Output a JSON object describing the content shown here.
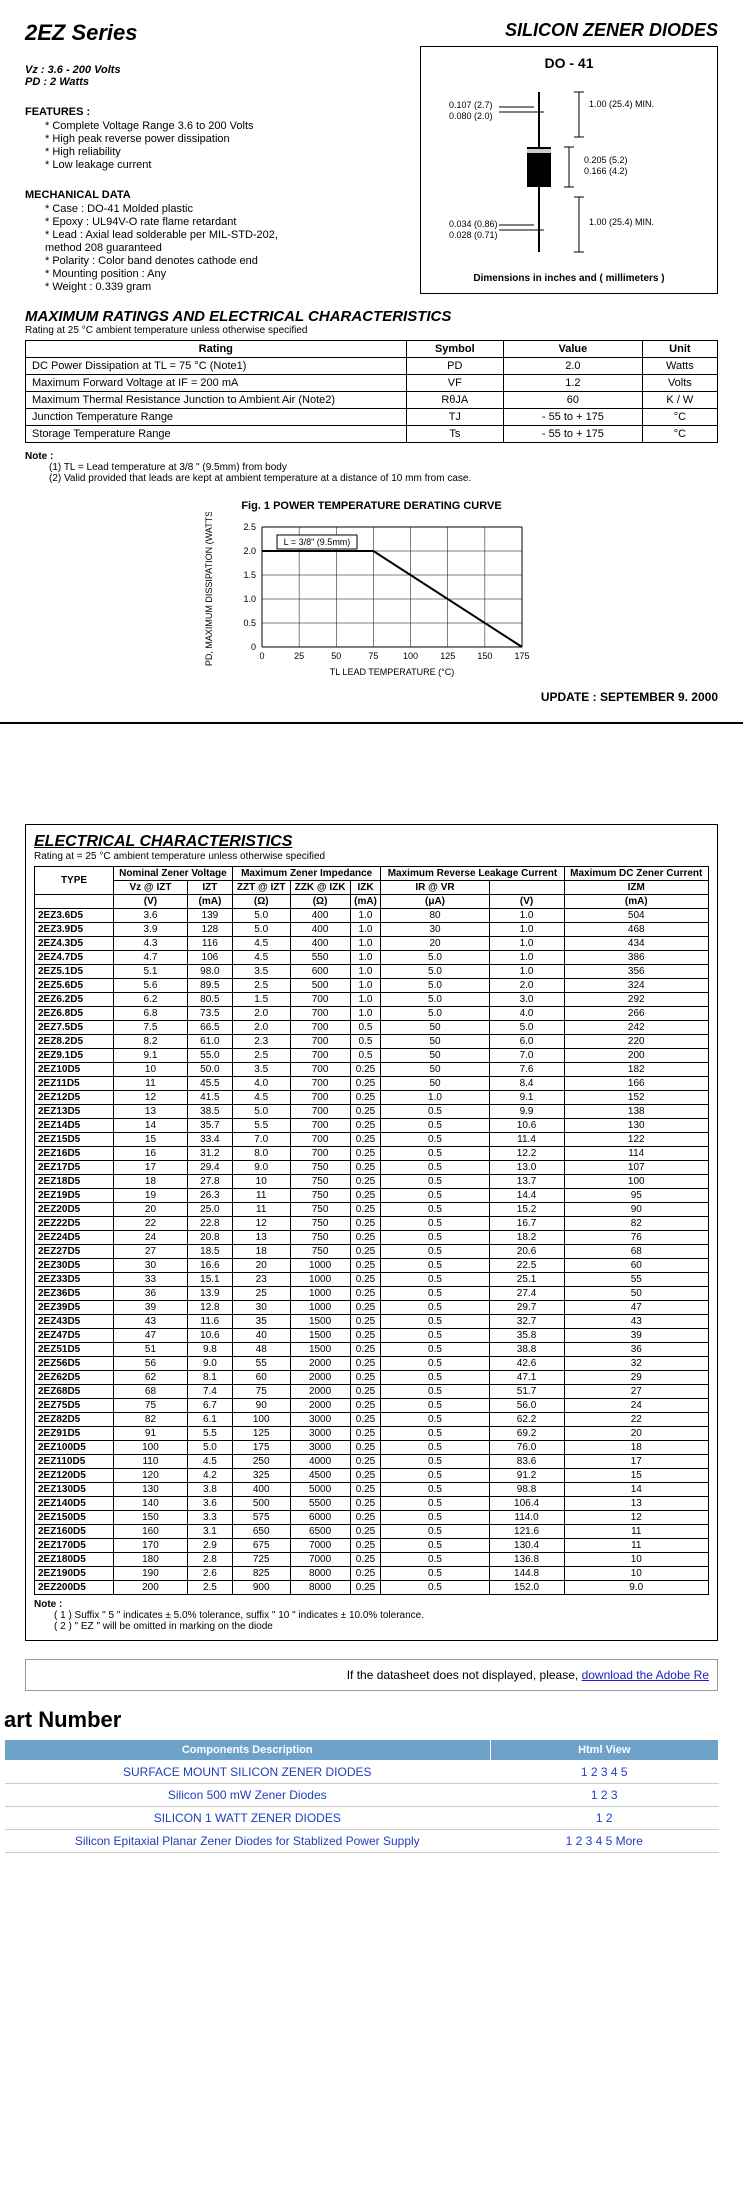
{
  "header": {
    "series": "2EZ  Series",
    "title": "SILICON ZENER DIODES",
    "vz": "Vz : 3.6 - 200 Volts",
    "pd": "PD : 2 Watts"
  },
  "features": {
    "heading": "FEATURES :",
    "items": [
      "* Complete Voltage Range 3.6 to 200 Volts",
      "* High peak reverse power dissipation",
      "* High reliability",
      "* Low leakage current"
    ]
  },
  "mech": {
    "heading": "MECHANICAL DATA",
    "items": [
      "* Case : DO-41 Molded plastic",
      "* Epoxy : UL94V-O rate flame retardant",
      "* Lead : Axial lead solderable per MIL-STD-202,",
      "            method 208 guaranteed",
      "* Polarity : Color band denotes cathode end",
      "* Mounting position : Any",
      "* Weight : 0.339 gram"
    ]
  },
  "package": {
    "name": "DO - 41",
    "dim_top_a": "0.107 (2.7)",
    "dim_top_b": "0.080 (2.0)",
    "dim_min1": "1.00 (25.4) MIN.",
    "dim_body_a": "0.205 (5.2)",
    "dim_body_b": "0.166 (4.2)",
    "dim_lead_a": "0.034 (0.86)",
    "dim_lead_b": "0.028 (0.71)",
    "dim_min2": "1.00 (25.4) MIN.",
    "footer": "Dimensions in inches and ( millimeters )"
  },
  "max_ratings": {
    "heading": "MAXIMUM RATINGS AND ELECTRICAL CHARACTERISTICS",
    "sub": "Rating at 25 °C ambient temperature unless otherwise specified",
    "cols": [
      "Rating",
      "Symbol",
      "Value",
      "Unit"
    ],
    "rows": [
      [
        "DC Power Dissipation at TL = 75 °C (Note1)",
        "PD",
        "2.0",
        "Watts"
      ],
      [
        "Maximum Forward Voltage at IF = 200 mA",
        "VF",
        "1.2",
        "Volts"
      ],
      [
        "Maximum Thermal Resistance Junction to Ambient Air (Note2)",
        "RθJA",
        "60",
        "K / W"
      ],
      [
        "Junction Temperature Range",
        "TJ",
        "- 55 to + 175",
        "°C"
      ],
      [
        "Storage Temperature Range",
        "Ts",
        "- 55 to + 175",
        "°C"
      ]
    ],
    "notes_h": "Note :",
    "notes": [
      "(1) TL = Lead temperature at 3/8 \" (9.5mm) from body",
      "(2) Valid provided that leads are kept at ambient temperature at a distance of 10 mm from case."
    ]
  },
  "fig1": {
    "title": "Fig. 1  POWER TEMPERATURE DERATING CURVE",
    "ylabel": "PD, MAXIMUM DISSIPATION (WATTS)",
    "xlabel": "TL  LEAD TEMPERATURE (°C)",
    "yticks": [
      "0",
      "0.5",
      "1.0",
      "1.5",
      "2.0",
      "2.5"
    ],
    "xticks": [
      "0",
      "25",
      "50",
      "75",
      "100",
      "125",
      "150",
      "175"
    ],
    "legend": "L = 3/8\" (9.5mm)",
    "line": [
      [
        0,
        2.0
      ],
      [
        75,
        2.0
      ],
      [
        175,
        0
      ]
    ],
    "grid_color": "#000",
    "line_color": "#000",
    "bg": "#fff"
  },
  "update": "UPDATE : SEPTEMBER 9. 2000",
  "ec": {
    "heading": "ELECTRICAL CHARACTERISTICS",
    "sub": "Rating at  = 25 °C ambient temperature unless otherwise specified",
    "group_headers": [
      "TYPE",
      "Nominal Zener Voltage",
      "Maximum Zener Impedance",
      "Maximum Reverse Leakage Current",
      "Maximum DC Zener Current"
    ],
    "sub_headers": [
      "Vz @ IZT",
      "IZT",
      "ZZT @ IZT",
      "ZZK @ IZK",
      "IZK",
      "IR   @   VR",
      "",
      "IZM"
    ],
    "unit_headers": [
      "(V)",
      "(mA)",
      "(Ω)",
      "(Ω)",
      "(mA)",
      "(μA)",
      "(V)",
      "(mA)"
    ],
    "rows": [
      [
        "2EZ3.6D5",
        "3.6",
        "139",
        "5.0",
        "400",
        "1.0",
        "80",
        "1.0",
        "504"
      ],
      [
        "2EZ3.9D5",
        "3.9",
        "128",
        "5.0",
        "400",
        "1.0",
        "30",
        "1.0",
        "468"
      ],
      [
        "2EZ4.3D5",
        "4.3",
        "116",
        "4.5",
        "400",
        "1.0",
        "20",
        "1.0",
        "434"
      ],
      [
        "2EZ4.7D5",
        "4.7",
        "106",
        "4.5",
        "550",
        "1.0",
        "5.0",
        "1.0",
        "386"
      ],
      [
        "2EZ5.1D5",
        "5.1",
        "98.0",
        "3.5",
        "600",
        "1.0",
        "5.0",
        "1.0",
        "356"
      ],
      [
        "2EZ5.6D5",
        "5.6",
        "89.5",
        "2.5",
        "500",
        "1.0",
        "5.0",
        "2.0",
        "324"
      ],
      [
        "2EZ6.2D5",
        "6.2",
        "80.5",
        "1.5",
        "700",
        "1.0",
        "5.0",
        "3.0",
        "292"
      ],
      [
        "2EZ6.8D5",
        "6.8",
        "73.5",
        "2.0",
        "700",
        "1.0",
        "5.0",
        "4.0",
        "266"
      ],
      [
        "2EZ7.5D5",
        "7.5",
        "66.5",
        "2.0",
        "700",
        "0.5",
        "50",
        "5.0",
        "242"
      ],
      [
        "2EZ8.2D5",
        "8.2",
        "61.0",
        "2.3",
        "700",
        "0.5",
        "50",
        "6.0",
        "220"
      ],
      [
        "2EZ9.1D5",
        "9.1",
        "55.0",
        "2.5",
        "700",
        "0.5",
        "50",
        "7.0",
        "200"
      ],
      [
        "2EZ10D5",
        "10",
        "50.0",
        "3.5",
        "700",
        "0.25",
        "50",
        "7.6",
        "182"
      ],
      [
        "2EZ11D5",
        "11",
        "45.5",
        "4.0",
        "700",
        "0.25",
        "50",
        "8.4",
        "166"
      ],
      [
        "2EZ12D5",
        "12",
        "41.5",
        "4.5",
        "700",
        "0.25",
        "1.0",
        "9.1",
        "152"
      ],
      [
        "2EZ13D5",
        "13",
        "38.5",
        "5.0",
        "700",
        "0.25",
        "0.5",
        "9.9",
        "138"
      ],
      [
        "2EZ14D5",
        "14",
        "35.7",
        "5.5",
        "700",
        "0.25",
        "0.5",
        "10.6",
        "130"
      ],
      [
        "2EZ15D5",
        "15",
        "33.4",
        "7.0",
        "700",
        "0.25",
        "0.5",
        "11.4",
        "122"
      ],
      [
        "2EZ16D5",
        "16",
        "31.2",
        "8.0",
        "700",
        "0.25",
        "0.5",
        "12.2",
        "114"
      ],
      [
        "2EZ17D5",
        "17",
        "29.4",
        "9.0",
        "750",
        "0.25",
        "0.5",
        "13.0",
        "107"
      ],
      [
        "2EZ18D5",
        "18",
        "27.8",
        "10",
        "750",
        "0.25",
        "0.5",
        "13.7",
        "100"
      ],
      [
        "2EZ19D5",
        "19",
        "26.3",
        "11",
        "750",
        "0.25",
        "0.5",
        "14.4",
        "95"
      ],
      [
        "2EZ20D5",
        "20",
        "25.0",
        "11",
        "750",
        "0.25",
        "0.5",
        "15.2",
        "90"
      ],
      [
        "2EZ22D5",
        "22",
        "22.8",
        "12",
        "750",
        "0.25",
        "0.5",
        "16.7",
        "82"
      ],
      [
        "2EZ24D5",
        "24",
        "20.8",
        "13",
        "750",
        "0.25",
        "0.5",
        "18.2",
        "76"
      ],
      [
        "2EZ27D5",
        "27",
        "18.5",
        "18",
        "750",
        "0.25",
        "0.5",
        "20.6",
        "68"
      ],
      [
        "2EZ30D5",
        "30",
        "16.6",
        "20",
        "1000",
        "0.25",
        "0.5",
        "22.5",
        "60"
      ],
      [
        "2EZ33D5",
        "33",
        "15.1",
        "23",
        "1000",
        "0.25",
        "0.5",
        "25.1",
        "55"
      ],
      [
        "2EZ36D5",
        "36",
        "13.9",
        "25",
        "1000",
        "0.25",
        "0.5",
        "27.4",
        "50"
      ],
      [
        "2EZ39D5",
        "39",
        "12.8",
        "30",
        "1000",
        "0.25",
        "0.5",
        "29.7",
        "47"
      ],
      [
        "2EZ43D5",
        "43",
        "11.6",
        "35",
        "1500",
        "0.25",
        "0.5",
        "32.7",
        "43"
      ],
      [
        "2EZ47D5",
        "47",
        "10.6",
        "40",
        "1500",
        "0.25",
        "0.5",
        "35.8",
        "39"
      ],
      [
        "2EZ51D5",
        "51",
        "9.8",
        "48",
        "1500",
        "0.25",
        "0.5",
        "38.8",
        "36"
      ],
      [
        "2EZ56D5",
        "56",
        "9.0",
        "55",
        "2000",
        "0.25",
        "0.5",
        "42.6",
        "32"
      ],
      [
        "2EZ62D5",
        "62",
        "8.1",
        "60",
        "2000",
        "0.25",
        "0.5",
        "47.1",
        "29"
      ],
      [
        "2EZ68D5",
        "68",
        "7.4",
        "75",
        "2000",
        "0.25",
        "0.5",
        "51.7",
        "27"
      ],
      [
        "2EZ75D5",
        "75",
        "6.7",
        "90",
        "2000",
        "0.25",
        "0.5",
        "56.0",
        "24"
      ],
      [
        "2EZ82D5",
        "82",
        "6.1",
        "100",
        "3000",
        "0.25",
        "0.5",
        "62.2",
        "22"
      ],
      [
        "2EZ91D5",
        "91",
        "5.5",
        "125",
        "3000",
        "0.25",
        "0.5",
        "69.2",
        "20"
      ],
      [
        "2EZ100D5",
        "100",
        "5.0",
        "175",
        "3000",
        "0.25",
        "0.5",
        "76.0",
        "18"
      ],
      [
        "2EZ110D5",
        "110",
        "4.5",
        "250",
        "4000",
        "0.25",
        "0.5",
        "83.6",
        "17"
      ],
      [
        "2EZ120D5",
        "120",
        "4.2",
        "325",
        "4500",
        "0.25",
        "0.5",
        "91.2",
        "15"
      ],
      [
        "2EZ130D5",
        "130",
        "3.8",
        "400",
        "5000",
        "0.25",
        "0.5",
        "98.8",
        "14"
      ],
      [
        "2EZ140D5",
        "140",
        "3.6",
        "500",
        "5500",
        "0.25",
        "0.5",
        "106.4",
        "13"
      ],
      [
        "2EZ150D5",
        "150",
        "3.3",
        "575",
        "6000",
        "0.25",
        "0.5",
        "114.0",
        "12"
      ],
      [
        "2EZ160D5",
        "160",
        "3.1",
        "650",
        "6500",
        "0.25",
        "0.5",
        "121.6",
        "11"
      ],
      [
        "2EZ170D5",
        "170",
        "2.9",
        "675",
        "7000",
        "0.25",
        "0.5",
        "130.4",
        "11"
      ],
      [
        "2EZ180D5",
        "180",
        "2.8",
        "725",
        "7000",
        "0.25",
        "0.5",
        "136.8",
        "10"
      ],
      [
        "2EZ190D5",
        "190",
        "2.6",
        "825",
        "8000",
        "0.25",
        "0.5",
        "144.8",
        "10"
      ],
      [
        "2EZ200D5",
        "200",
        "2.5",
        "900",
        "8000",
        "0.25",
        "0.5",
        "152.0",
        "9.0"
      ]
    ],
    "notes_h": "Note :",
    "notes": [
      "( 1 )   Suffix \" 5 \" indicates ± 5.0% tolerance, suffix \" 10 \" indicates ± 10.0% tolerance.",
      "( 2 )   \" EZ \" will be omitted in marking on the diode"
    ]
  },
  "adobe": {
    "text": "If the datasheet does not displayed, please, ",
    "link": "download the Adobe Re"
  },
  "partnum": {
    "heading": "art Number",
    "cols": [
      "Components Description",
      "Html View"
    ],
    "rows": [
      [
        "SURFACE MOUNT SILICON ZENER DIODES",
        "1 2 3 4 5"
      ],
      [
        "Silicon 500 mW Zener Diodes",
        "1 2 3"
      ],
      [
        "SILICON 1 WATT ZENER DIODES",
        "1 2"
      ],
      [
        "Silicon Epitaxial Planar Zener Diodes for Stablized Power Supply",
        "1 2 3 4 5 More"
      ]
    ]
  }
}
